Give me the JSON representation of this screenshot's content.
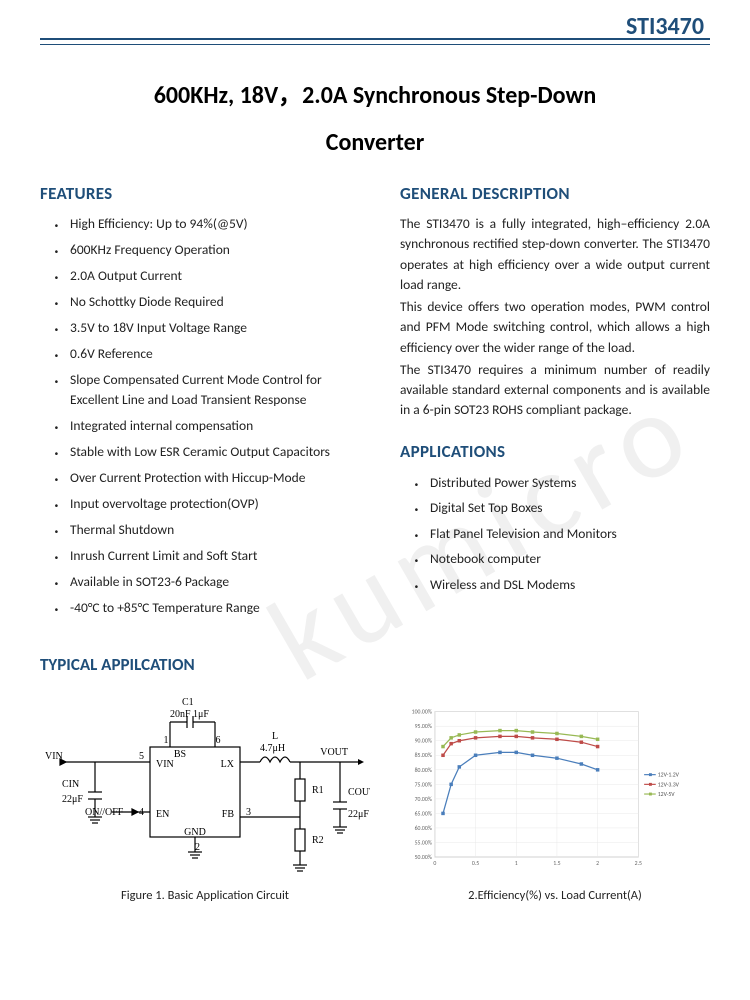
{
  "header": {
    "partNumber": "STI3470"
  },
  "title": {
    "line1": "600KHz, 18V，2.0A Synchronous Step-Down",
    "line2": "Converter"
  },
  "watermarkText": "kumicro",
  "features": {
    "heading": "FEATURES",
    "items": [
      "High Efficiency: Up to 94%(@5V)",
      "600KHz Frequency Operation",
      "2.0A Output Current",
      "No Schottky Diode Required",
      "3.5V to 18V Input Voltage Range",
      "0.6V Reference",
      "Slope Compensated Current Mode Control for Excellent Line and Load Transient Response",
      "Integrated internal compensation",
      "Stable with Low ESR Ceramic Output Capacitors",
      "Over Current Protection with Hiccup-Mode",
      "Input overvoltage protection(OVP)",
      "Thermal Shutdown",
      "Inrush Current Limit and Soft Start",
      "Available in SOT23-6 Package",
      "-40°C to +85°C Temperature Range"
    ]
  },
  "description": {
    "heading": "GENERAL DESCRIPTION",
    "p1": "The STI3470 is a fully integrated, high–efficiency 2.0A synchronous rectified step-down converter. The STI3470 operates at high efficiency over a wide output current load range.",
    "p2": "This device offers two operation modes, PWM control and PFM Mode switching control, which allows a high efficiency over the wider range of the load.",
    "p3": "The STI3470 requires a minimum number of readily available standard external components and is available in a 6-pin SOT23 ROHS compliant package."
  },
  "applications": {
    "heading": "APPLICATIONS",
    "items": [
      "Distributed Power Systems",
      "Digital Set Top Boxes",
      "Flat Panel Television and Monitors",
      "Notebook computer",
      "Wireless and DSL Modems"
    ]
  },
  "typical": {
    "heading": "TYPICAL APPILCATION"
  },
  "circuit": {
    "caption": "Figure 1. Basic Application Circuit",
    "labels": {
      "vin": "VIN",
      "vout": "VOUT",
      "cin": "CIN",
      "cinVal": "22μF",
      "cout": "COUT",
      "coutVal": "22μF",
      "c1": "C1",
      "c1Val": "20nF  1μF",
      "l": "L",
      "lVal": "4.7μH",
      "r1": "R1",
      "r2": "R2",
      "onoff": "ON/\nOFF",
      "chipVin": "VIN",
      "chipBs": "BS",
      "chipLx": "LX",
      "chipEn": "EN",
      "chipFb": "FB",
      "chipGnd": "GND",
      "pin1": "1",
      "pin2": "2",
      "pin3": "3",
      "pin4": "4",
      "pin5": "5",
      "pin6": "6"
    }
  },
  "chart": {
    "type": "line",
    "caption": "2.Efficiency(%) vs. Load Current(A)",
    "title_fontsize": 12,
    "ylim": [
      50,
      100
    ],
    "ytick_step": 5,
    "xlim": [
      0,
      2.5
    ],
    "xtick_step": 0.5,
    "background_color": "#ffffff",
    "grid_color": "#e8e8e8",
    "legend_fontsize": 6,
    "series": [
      {
        "name": "12V-1.2V",
        "color": "#4a7ebb",
        "x": [
          0.1,
          0.2,
          0.3,
          0.5,
          0.8,
          1.0,
          1.2,
          1.5,
          1.8,
          2.0
        ],
        "y": [
          65,
          75,
          81,
          85,
          86,
          86,
          85,
          84,
          82,
          80
        ]
      },
      {
        "name": "12V-3.3V",
        "color": "#be4b48",
        "x": [
          0.1,
          0.2,
          0.3,
          0.5,
          0.8,
          1.0,
          1.2,
          1.5,
          1.8,
          2.0
        ],
        "y": [
          85,
          89,
          90,
          91,
          91.5,
          91.5,
          91,
          90.5,
          89.5,
          88
        ]
      },
      {
        "name": "12V-5V",
        "color": "#98b954",
        "x": [
          0.1,
          0.2,
          0.3,
          0.5,
          0.8,
          1.0,
          1.2,
          1.5,
          1.8,
          2.0
        ],
        "y": [
          88,
          91,
          92,
          93,
          93.5,
          93.5,
          93,
          92.5,
          91.5,
          90.5
        ]
      }
    ]
  }
}
